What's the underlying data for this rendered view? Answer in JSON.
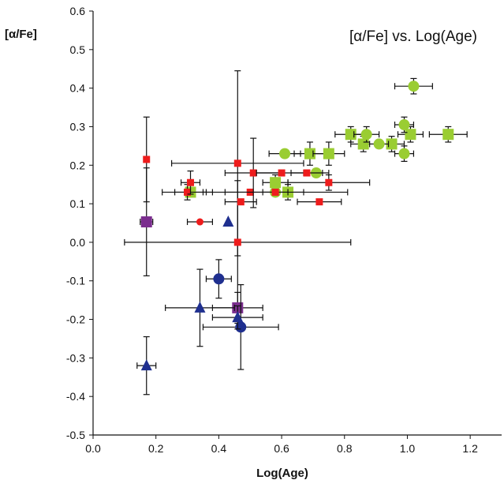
{
  "chart_data": {
    "type": "scatter",
    "title": "[α/Fe] vs. Log(Age)",
    "xlabel": "Log(Age)",
    "ylabel": "[α/Fe]",
    "xlim": [
      0.0,
      1.3
    ],
    "ylim": [
      -0.5,
      0.6
    ],
    "x_ticks": [
      "0.0",
      "0.2",
      "0.4",
      "0.6",
      "0.8",
      "1.0",
      "1.2"
    ],
    "x_tick_values": [
      0.0,
      0.2,
      0.4,
      0.6,
      0.8,
      1.0,
      1.2
    ],
    "y_ticks": [
      "0.6",
      "0.5",
      "0.4",
      "0.3",
      "0.2",
      "0.1",
      "0.0",
      "-0.1",
      "-0.2",
      "-0.3",
      "-0.4",
      "-0.5"
    ],
    "y_tick_values": [
      0.6,
      0.5,
      0.4,
      0.3,
      0.2,
      0.1,
      0.0,
      -0.1,
      -0.2,
      -0.3,
      -0.4,
      -0.5
    ],
    "grid": false,
    "legend": "none",
    "series": [
      {
        "marker": "square",
        "color": "#9acd32",
        "points": [
          {
            "x": 0.31,
            "y": 0.13,
            "xerr": 0.05,
            "yerr": 0.0
          },
          {
            "x": 0.58,
            "y": 0.155,
            "xerr": 0.04,
            "yerr": 0.02
          },
          {
            "x": 0.62,
            "y": 0.13,
            "xerr": 0.05,
            "yerr": 0.02
          },
          {
            "x": 0.69,
            "y": 0.23,
            "xerr": 0.05,
            "yerr": 0.03
          },
          {
            "x": 0.75,
            "y": 0.23,
            "xerr": 0.05,
            "yerr": 0.03
          },
          {
            "x": 0.82,
            "y": 0.28,
            "xerr": 0.05,
            "yerr": 0.02
          },
          {
            "x": 0.86,
            "y": 0.255,
            "xerr": 0.04,
            "yerr": 0.02
          },
          {
            "x": 0.95,
            "y": 0.255,
            "xerr": 0.04,
            "yerr": 0.02
          },
          {
            "x": 1.01,
            "y": 0.28,
            "xerr": 0.04,
            "yerr": 0.02
          },
          {
            "x": 1.13,
            "y": 0.28,
            "xerr": 0.06,
            "yerr": 0.02
          }
        ]
      },
      {
        "marker": "circle",
        "color": "#9acd32",
        "points": [
          {
            "x": 0.58,
            "y": 0.13,
            "xerr": 0.04,
            "yerr": 0.0
          },
          {
            "x": 0.61,
            "y": 0.23,
            "xerr": 0.05,
            "yerr": 0.0
          },
          {
            "x": 0.71,
            "y": 0.18,
            "xerr": 0.04,
            "yerr": 0.0
          },
          {
            "x": 0.87,
            "y": 0.28,
            "xerr": 0.04,
            "yerr": 0.02
          },
          {
            "x": 0.91,
            "y": 0.255,
            "xerr": 0.03,
            "yerr": 0.0
          },
          {
            "x": 0.99,
            "y": 0.305,
            "xerr": 0.03,
            "yerr": 0.02
          },
          {
            "x": 0.99,
            "y": 0.23,
            "xerr": 0.03,
            "yerr": 0.02
          },
          {
            "x": 1.02,
            "y": 0.405,
            "xerr": 0.06,
            "yerr": 0.02
          }
        ]
      },
      {
        "marker": "square",
        "color": "#ee1c1c",
        "points": [
          {
            "x": 0.17,
            "y": 0.215,
            "xerr": 0.0,
            "yerr": 0.11
          },
          {
            "x": 0.3,
            "y": 0.13,
            "xerr": 0.08,
            "yerr": 0.02
          },
          {
            "x": 0.31,
            "y": 0.155,
            "xerr": 0.03,
            "yerr": 0.03
          },
          {
            "x": 0.46,
            "y": 0.205,
            "xerr": 0.21,
            "yerr": 0.24
          },
          {
            "x": 0.46,
            "y": 0.0,
            "xerr": 0.36,
            "yerr": 0.16
          },
          {
            "x": 0.47,
            "y": 0.105,
            "xerr": 0.05,
            "yerr": 0.0
          },
          {
            "x": 0.5,
            "y": 0.13,
            "xerr": 0.08,
            "yerr": 0.0
          },
          {
            "x": 0.51,
            "y": 0.18,
            "xerr": 0.09,
            "yerr": 0.09
          },
          {
            "x": 0.58,
            "y": 0.13,
            "xerr": 0.23,
            "yerr": 0.0
          },
          {
            "x": 0.6,
            "y": 0.18,
            "xerr": 0.08,
            "yerr": 0.0
          },
          {
            "x": 0.68,
            "y": 0.18,
            "xerr": 0.05,
            "yerr": 0.0
          },
          {
            "x": 0.72,
            "y": 0.105,
            "xerr": 0.07,
            "yerr": 0.0
          },
          {
            "x": 0.75,
            "y": 0.155,
            "xerr": 0.13,
            "yerr": 0.02
          }
        ]
      },
      {
        "marker": "circle",
        "color": "#ee1c1c",
        "points": [
          {
            "x": 0.34,
            "y": 0.053,
            "xerr": 0.04,
            "yerr": 0.0
          }
        ]
      },
      {
        "marker": "square",
        "color": "#7b2d8e",
        "points": [
          {
            "x": 0.17,
            "y": 0.053,
            "xerr": 0.02,
            "yerr": 0.14
          },
          {
            "x": 0.46,
            "y": -0.17,
            "xerr": 0.08,
            "yerr": 0.04
          }
        ]
      },
      {
        "marker": "circle",
        "color": "#1f2f8f",
        "points": [
          {
            "x": 0.4,
            "y": -0.095,
            "xerr": 0.04,
            "yerr": 0.05
          },
          {
            "x": 0.47,
            "y": -0.22,
            "xerr": 0.12,
            "yerr": 0.11
          }
        ]
      },
      {
        "marker": "triangle",
        "color": "#1f2f8f",
        "points": [
          {
            "x": 0.17,
            "y": -0.32,
            "xerr": 0.03,
            "yerr": 0.075
          },
          {
            "x": 0.34,
            "y": -0.17,
            "xerr": 0.11,
            "yerr": 0.1
          },
          {
            "x": 0.43,
            "y": 0.053,
            "xerr": 0.0,
            "yerr": 0.0
          },
          {
            "x": 0.46,
            "y": -0.195,
            "xerr": 0.08,
            "yerr": 0.03
          }
        ]
      }
    ]
  }
}
